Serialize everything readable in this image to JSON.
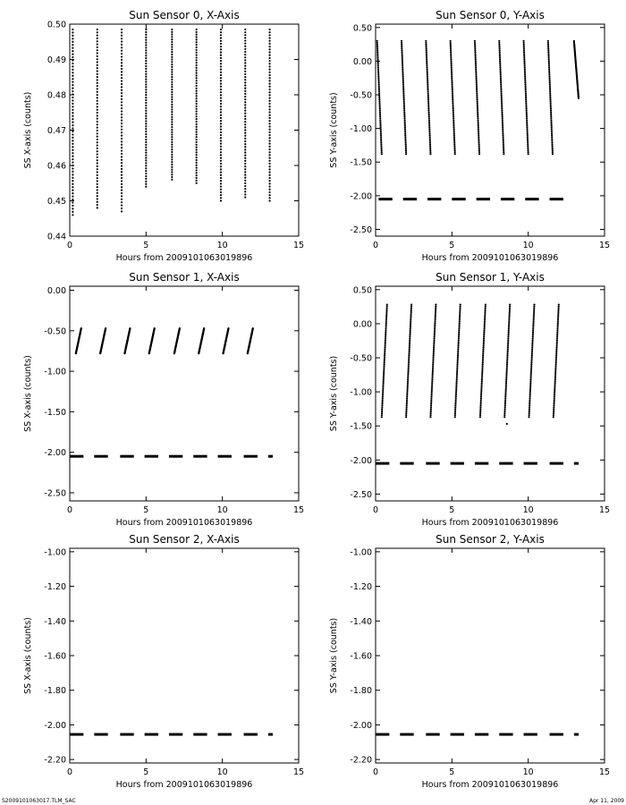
{
  "footer": {
    "left": "S2009101063017.TLM_SAC",
    "right": "Apr 11, 2009"
  },
  "chart_data": [
    {
      "type": "scatter",
      "title": "Sun Sensor 0, X-Axis",
      "xlabel": "Hours from 2009101063019896",
      "ylabel": "SS X-axis (counts)",
      "xlim": [
        0,
        15
      ],
      "ylim": [
        0.44,
        0.5
      ],
      "xticks": [
        0,
        5,
        10,
        15
      ],
      "xtick_labels": [
        "0",
        "5",
        "10",
        "15"
      ],
      "yticks": [
        0.44,
        0.45,
        0.46,
        0.47,
        0.48,
        0.49,
        0.5
      ],
      "ytick_labels": [
        "0.44",
        "0.45",
        "0.46",
        "0.47",
        "0.48",
        "0.49",
        "0.50"
      ],
      "segments": [
        {
          "x_start": 0.2,
          "x_end": 0.2,
          "y_start": 0.446,
          "y_end": 0.4985
        },
        {
          "x_start": 1.8,
          "x_end": 1.8,
          "y_start": 0.448,
          "y_end": 0.4985
        },
        {
          "x_start": 3.4,
          "x_end": 3.4,
          "y_start": 0.447,
          "y_end": 0.4985
        },
        {
          "x_start": 5.0,
          "x_end": 5.0,
          "y_start": 0.454,
          "y_end": 0.4985
        },
        {
          "x_start": 6.7,
          "x_end": 6.7,
          "y_start": 0.456,
          "y_end": 0.4985
        },
        {
          "x_start": 8.3,
          "x_end": 8.3,
          "y_start": 0.455,
          "y_end": 0.4985
        },
        {
          "x_start": 9.9,
          "x_end": 9.9,
          "y_start": 0.45,
          "y_end": 0.4985
        },
        {
          "x_start": 11.5,
          "x_end": 11.5,
          "y_start": 0.451,
          "y_end": 0.4985
        },
        {
          "x_start": 13.1,
          "x_end": 13.1,
          "y_start": 0.45,
          "y_end": 0.4985
        }
      ]
    },
    {
      "type": "scatter",
      "title": "Sun Sensor 0, Y-Axis",
      "xlabel": "Hours from 2009101063019896",
      "ylabel": "SS Y-axis (counts)",
      "xlim": [
        0,
        15
      ],
      "ylim": [
        -2.6,
        0.55
      ],
      "xticks": [
        0,
        5,
        10,
        15
      ],
      "xtick_labels": [
        "0",
        "5",
        "10",
        "15"
      ],
      "yticks": [
        -2.5,
        -2.0,
        -1.5,
        -1.0,
        -0.5,
        0.0,
        0.5
      ],
      "ytick_labels": [
        "-2.50",
        "-2.00",
        "-1.50",
        "-1.00",
        "-0.50",
        "0.00",
        "0.50"
      ],
      "segments": [
        {
          "x_start": 0.1,
          "x_end": 0.4,
          "y_start": 0.3,
          "y_end": -1.38
        },
        {
          "x_start": 1.7,
          "x_end": 2.0,
          "y_start": 0.3,
          "y_end": -1.38
        },
        {
          "x_start": 3.3,
          "x_end": 3.6,
          "y_start": 0.3,
          "y_end": -1.38
        },
        {
          "x_start": 4.9,
          "x_end": 5.2,
          "y_start": 0.3,
          "y_end": -1.38
        },
        {
          "x_start": 6.5,
          "x_end": 6.8,
          "y_start": 0.3,
          "y_end": -1.38
        },
        {
          "x_start": 8.1,
          "x_end": 8.4,
          "y_start": 0.3,
          "y_end": -1.38
        },
        {
          "x_start": 9.7,
          "x_end": 10.0,
          "y_start": 0.3,
          "y_end": -1.38
        },
        {
          "x_start": 11.3,
          "x_end": 11.6,
          "y_start": 0.3,
          "y_end": -1.38
        },
        {
          "x_start": 13.0,
          "x_end": 13.3,
          "y_start": 0.3,
          "y_end": -0.55
        }
      ],
      "baseline": {
        "y": -2.05,
        "x_start": 0.2,
        "x_end": 12.3,
        "dash_starts": [
          0.2,
          1.8,
          3.4,
          5.0,
          6.6,
          8.2,
          9.8,
          11.4
        ]
      }
    },
    {
      "type": "scatter",
      "title": "Sun Sensor 1, X-Axis",
      "xlabel": "Hours from 2009101063019896",
      "ylabel": "SS X-axis (counts)",
      "xlim": [
        0,
        15
      ],
      "ylim": [
        -2.6,
        0.05
      ],
      "xticks": [
        0,
        5,
        10,
        15
      ],
      "xtick_labels": [
        "0",
        "5",
        "10",
        "15"
      ],
      "yticks": [
        -2.5,
        -2.0,
        -1.5,
        -1.0,
        -0.5,
        0.0
      ],
      "ytick_labels": [
        "-2.50",
        "-2.00",
        "-1.50",
        "-1.00",
        "-0.50",
        "0.00"
      ],
      "segments": [
        {
          "x_start": 0.4,
          "x_end": 0.75,
          "y_start": -0.78,
          "y_end": -0.47
        },
        {
          "x_start": 2.0,
          "x_end": 2.35,
          "y_start": -0.78,
          "y_end": -0.47
        },
        {
          "x_start": 3.6,
          "x_end": 3.95,
          "y_start": -0.78,
          "y_end": -0.47
        },
        {
          "x_start": 5.2,
          "x_end": 5.55,
          "y_start": -0.78,
          "y_end": -0.47
        },
        {
          "x_start": 6.85,
          "x_end": 7.2,
          "y_start": -0.78,
          "y_end": -0.47
        },
        {
          "x_start": 8.45,
          "x_end": 8.8,
          "y_start": -0.78,
          "y_end": -0.47
        },
        {
          "x_start": 10.05,
          "x_end": 10.4,
          "y_start": -0.78,
          "y_end": -0.47
        },
        {
          "x_start": 11.65,
          "x_end": 12.0,
          "y_start": -0.78,
          "y_end": -0.47
        }
      ],
      "baseline": {
        "y": -2.05,
        "x_start": 0.0,
        "x_end": 13.3,
        "dash_starts": [
          0.0,
          1.6,
          3.3,
          4.9,
          6.5,
          8.1,
          9.7,
          11.4,
          13.0
        ]
      }
    },
    {
      "type": "scatter",
      "title": "Sun Sensor 1, Y-Axis",
      "xlabel": "Hours from 2009101063019896",
      "ylabel": "SS Y-axis (counts)",
      "xlim": [
        0,
        15
      ],
      "ylim": [
        -2.6,
        0.55
      ],
      "xticks": [
        0,
        5,
        10,
        15
      ],
      "xtick_labels": [
        "0",
        "5",
        "10",
        "15"
      ],
      "yticks": [
        -2.5,
        -2.0,
        -1.5,
        -1.0,
        -0.5,
        0.0,
        0.5
      ],
      "ytick_labels": [
        "-2.50",
        "-2.00",
        "-1.50",
        "-1.00",
        "-0.50",
        "0.00",
        "0.50"
      ],
      "segments": [
        {
          "x_start": 0.4,
          "x_end": 0.75,
          "y_start": -1.37,
          "y_end": 0.28
        },
        {
          "x_start": 2.0,
          "x_end": 2.35,
          "y_start": -1.37,
          "y_end": 0.28
        },
        {
          "x_start": 3.6,
          "x_end": 3.95,
          "y_start": -1.37,
          "y_end": 0.28
        },
        {
          "x_start": 5.2,
          "x_end": 5.55,
          "y_start": -1.37,
          "y_end": 0.28
        },
        {
          "x_start": 6.85,
          "x_end": 7.2,
          "y_start": -1.37,
          "y_end": 0.28
        },
        {
          "x_start": 8.45,
          "x_end": 8.8,
          "y_start": -1.37,
          "y_end": 0.28
        },
        {
          "x_start": 10.05,
          "x_end": 10.4,
          "y_start": -1.37,
          "y_end": 0.28
        },
        {
          "x_start": 11.65,
          "x_end": 12.0,
          "y_start": -1.37,
          "y_end": 0.28
        }
      ],
      "outliers": [
        {
          "x": 8.6,
          "y": -1.47
        }
      ],
      "baseline": {
        "y": -2.05,
        "x_start": 0.0,
        "x_end": 13.3,
        "dash_starts": [
          0.0,
          1.6,
          3.3,
          4.9,
          6.5,
          8.1,
          9.7,
          11.4,
          13.0
        ]
      }
    },
    {
      "type": "scatter",
      "title": "Sun Sensor 2, X-Axis",
      "xlabel": "Hours from 2009101063019896",
      "ylabel": "SS X-axis (counts)",
      "xlim": [
        0,
        15
      ],
      "ylim": [
        -2.22,
        -0.98
      ],
      "xticks": [
        0,
        5,
        10,
        15
      ],
      "xtick_labels": [
        "0",
        "5",
        "10",
        "15"
      ],
      "yticks": [
        -2.2,
        -2.0,
        -1.8,
        -1.6,
        -1.4,
        -1.2,
        -1.0
      ],
      "ytick_labels": [
        "-2.20",
        "-2.00",
        "-1.80",
        "-1.60",
        "-1.40",
        "-1.20",
        "-1.00"
      ],
      "segments": [],
      "baseline": {
        "y": -2.055,
        "x_start": 0.0,
        "x_end": 13.3,
        "dash_starts": [
          0.0,
          1.6,
          3.3,
          4.9,
          6.5,
          8.1,
          9.7,
          11.4,
          13.0
        ]
      }
    },
    {
      "type": "scatter",
      "title": "Sun Sensor 2, Y-Axis",
      "xlabel": "Hours from 2009101063019896",
      "ylabel": "SS Y-axis (counts)",
      "xlim": [
        0,
        15
      ],
      "ylim": [
        -2.22,
        -0.98
      ],
      "xticks": [
        0,
        5,
        10,
        15
      ],
      "xtick_labels": [
        "0",
        "5",
        "10",
        "15"
      ],
      "yticks": [
        -2.2,
        -2.0,
        -1.8,
        -1.6,
        -1.4,
        -1.2,
        -1.0
      ],
      "ytick_labels": [
        "-2.20",
        "-2.00",
        "-1.80",
        "-1.60",
        "-1.40",
        "-1.20",
        "-1.00"
      ],
      "segments": [],
      "baseline": {
        "y": -2.055,
        "x_start": 0.0,
        "x_end": 13.3,
        "dash_starts": [
          0.0,
          1.6,
          3.3,
          4.9,
          6.5,
          8.1,
          9.7,
          11.4,
          13.0
        ]
      }
    }
  ]
}
